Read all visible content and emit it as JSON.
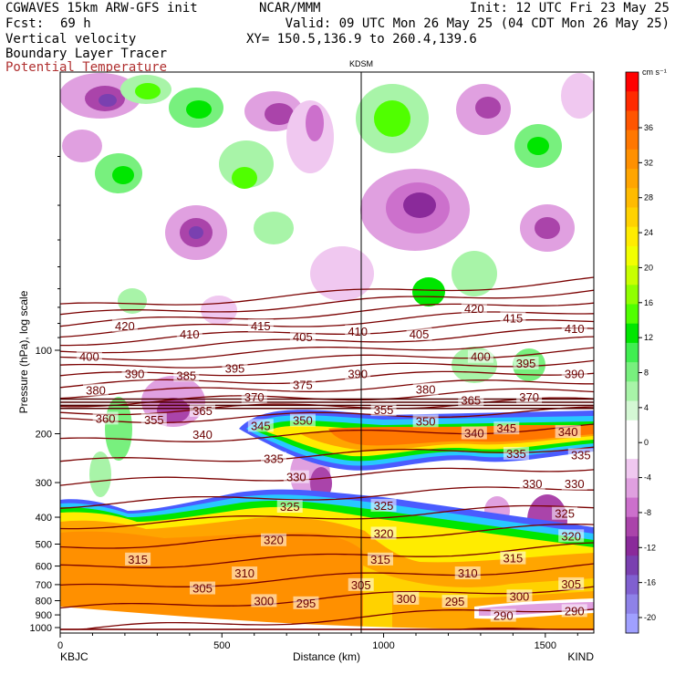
{
  "header": {
    "model": "CGWAVES 15km ARW-GFS init",
    "org": "NCAR/MMM",
    "init": "Init: 12 UTC Fri 23 May 25",
    "fcst_label": "Fcst:",
    "fcst_value": "69 h",
    "valid": "Valid: 09 UTC Mon 26 May 25 (04 CDT Mon 26 May 25)",
    "field1": "Vertical velocity",
    "xy": "XY= 150.5,136.9 to 260.4,139.6",
    "field2": "Boundary Layer Tracer",
    "field3": "Potential Temperature",
    "field3_color": "#b03030"
  },
  "chart_data": {
    "type": "heatmap",
    "xlabel": "Distance (km)",
    "ylabel": "Pressure (hPa), log scale",
    "x_ticks": [
      "0",
      "500",
      "1000",
      "1500"
    ],
    "x_tick_values": [
      0,
      500,
      1000,
      1500
    ],
    "xlim": [
      0,
      1650
    ],
    "y_ticks": [
      "100",
      "200",
      "300",
      "400",
      "500",
      "600",
      "700",
      "800",
      "900",
      "1000"
    ],
    "y_tick_values": [
      100,
      200,
      300,
      400,
      500,
      600,
      700,
      800,
      900,
      1000
    ],
    "y_scale": "log",
    "station_left": "KBJC",
    "station_right": "KIND",
    "station_mid": "KDSM",
    "station_mid_km": 935,
    "colorbar": {
      "unit": "cm s⁻¹",
      "tick_labels": [
        "36",
        "32",
        "28",
        "24",
        "20",
        "16",
        "12",
        "8",
        "4",
        "0",
        "-4",
        "-8",
        "-12",
        "-16",
        "-20"
      ],
      "colors": [
        "#ff0000",
        "#ff2a00",
        "#ff5500",
        "#ff7700",
        "#ff9000",
        "#ffa500",
        "#ffbb00",
        "#ffd200",
        "#ffec00",
        "#f2ff00",
        "#c8ff00",
        "#90ff00",
        "#50ff00",
        "#00e600",
        "#40ee50",
        "#78f07e",
        "#a8f4a8",
        "#d4f8d4",
        "#ffffff",
        "#ffffff",
        "#f0c8f0",
        "#e0a0e0",
        "#cc70cc",
        "#aa44aa",
        "#8a2a9a",
        "#7a40b0",
        "#8060d0",
        "#8e82e8",
        "#a0a0ff"
      ]
    },
    "theta_labels": [
      "420",
      "415",
      "410",
      "405",
      "400",
      "395",
      "390",
      "385",
      "380",
      "375",
      "370",
      "365",
      "360",
      "355",
      "350",
      "345",
      "340",
      "335",
      "330",
      "325",
      "320",
      "315",
      "310",
      "305",
      "300",
      "295",
      "290"
    ],
    "theta_label_positions": [
      {
        "label": "420",
        "km": 200,
        "hPa": 82
      },
      {
        "label": "410",
        "km": 400,
        "hPa": 88
      },
      {
        "label": "415",
        "km": 620,
        "hPa": 82
      },
      {
        "label": "405",
        "km": 750,
        "hPa": 90
      },
      {
        "label": "410",
        "km": 920,
        "hPa": 86
      },
      {
        "label": "405",
        "km": 1110,
        "hPa": 88
      },
      {
        "label": "420",
        "km": 1280,
        "hPa": 71
      },
      {
        "label": "415",
        "km": 1400,
        "hPa": 77
      },
      {
        "label": "410",
        "km": 1590,
        "hPa": 84
      },
      {
        "label": "400",
        "km": 90,
        "hPa": 106
      },
      {
        "label": "390",
        "km": 230,
        "hPa": 122
      },
      {
        "label": "385",
        "km": 390,
        "hPa": 124
      },
      {
        "label": "395",
        "km": 540,
        "hPa": 117
      },
      {
        "label": "375",
        "km": 750,
        "hPa": 134
      },
      {
        "label": "390",
        "km": 920,
        "hPa": 122
      },
      {
        "label": "400",
        "km": 1300,
        "hPa": 106
      },
      {
        "label": "395",
        "km": 1440,
        "hPa": 112
      },
      {
        "label": "390",
        "km": 1590,
        "hPa": 122
      },
      {
        "label": "380",
        "km": 110,
        "hPa": 140
      },
      {
        "label": "370",
        "km": 600,
        "hPa": 148
      },
      {
        "label": "380",
        "km": 1130,
        "hPa": 139
      },
      {
        "label": "365",
        "km": 1270,
        "hPa": 152
      },
      {
        "label": "370",
        "km": 1450,
        "hPa": 148
      },
      {
        "label": "360",
        "km": 140,
        "hPa": 177
      },
      {
        "label": "355",
        "km": 290,
        "hPa": 179
      },
      {
        "label": "365",
        "km": 440,
        "hPa": 166
      },
      {
        "label": "355",
        "km": 1000,
        "hPa": 165
      },
      {
        "label": "350",
        "km": 1130,
        "hPa": 181
      },
      {
        "label": "345",
        "km": 620,
        "hPa": 188
      },
      {
        "label": "350",
        "km": 750,
        "hPa": 180
      },
      {
        "label": "340",
        "km": 440,
        "hPa": 202
      },
      {
        "label": "345",
        "km": 1380,
        "hPa": 192
      },
      {
        "label": "340",
        "km": 1280,
        "hPa": 200
      },
      {
        "label": "340",
        "km": 1570,
        "hPa": 198
      },
      {
        "label": "335",
        "km": 660,
        "hPa": 247
      },
      {
        "label": "335",
        "km": 1410,
        "hPa": 237
      },
      {
        "label": "335",
        "km": 1610,
        "hPa": 240
      },
      {
        "label": "330",
        "km": 730,
        "hPa": 288
      },
      {
        "label": "330",
        "km": 1460,
        "hPa": 305
      },
      {
        "label": "330",
        "km": 1590,
        "hPa": 305
      },
      {
        "label": "325",
        "km": 710,
        "hPa": 368
      },
      {
        "label": "325",
        "km": 1000,
        "hPa": 365
      },
      {
        "label": "325",
        "km": 1560,
        "hPa": 390
      },
      {
        "label": "320",
        "km": 660,
        "hPa": 486
      },
      {
        "label": "320",
        "km": 1000,
        "hPa": 460
      },
      {
        "label": "320",
        "km": 1580,
        "hPa": 470
      },
      {
        "label": "315",
        "km": 240,
        "hPa": 570
      },
      {
        "label": "315",
        "km": 990,
        "hPa": 570
      },
      {
        "label": "315",
        "km": 1400,
        "hPa": 565
      },
      {
        "label": "310",
        "km": 570,
        "hPa": 640
      },
      {
        "label": "310",
        "km": 1260,
        "hPa": 640
      },
      {
        "label": "305",
        "km": 440,
        "hPa": 725
      },
      {
        "label": "305",
        "km": 930,
        "hPa": 705
      },
      {
        "label": "305",
        "km": 1580,
        "hPa": 700
      },
      {
        "label": "300",
        "km": 630,
        "hPa": 805
      },
      {
        "label": "295",
        "km": 760,
        "hPa": 820
      },
      {
        "label": "300",
        "km": 1070,
        "hPa": 790
      },
      {
        "label": "295",
        "km": 1220,
        "hPa": 810
      },
      {
        "label": "300",
        "km": 1420,
        "hPa": 775
      },
      {
        "label": "290",
        "km": 1370,
        "hPa": 910
      },
      {
        "label": "290",
        "km": 1590,
        "hPa": 875
      }
    ],
    "legend": "none",
    "grid": false
  }
}
